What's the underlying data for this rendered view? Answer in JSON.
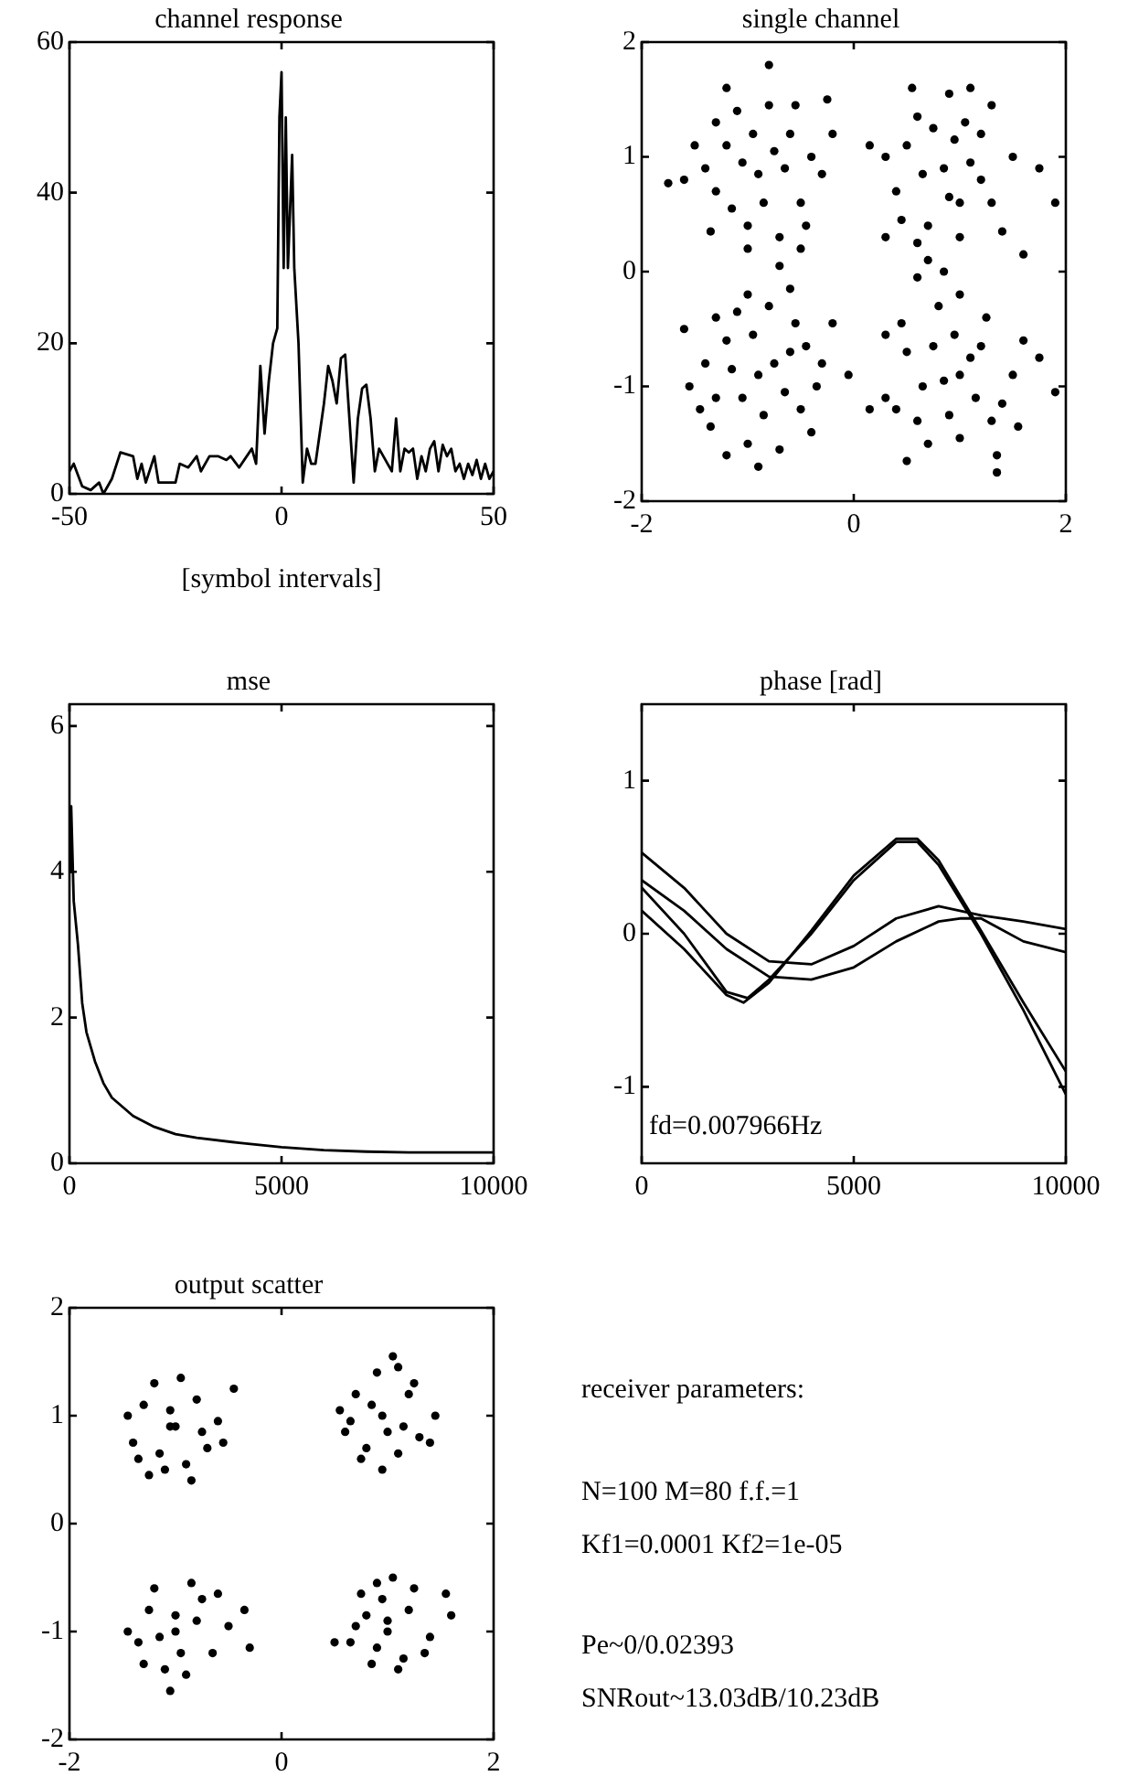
{
  "chart_data": [
    {
      "type": "line",
      "title": "channel response",
      "xlabel": "[symbol intervals]",
      "xlim": [
        -50,
        50
      ],
      "xticks": [
        -50,
        0,
        50
      ],
      "ylim": [
        0,
        60
      ],
      "yticks": [
        0,
        20,
        40,
        60
      ],
      "marker": "none",
      "series": [
        {
          "color": "#000000",
          "x": [
            -50,
            -49,
            -47,
            -45,
            -43,
            -42,
            -40,
            -38,
            -35,
            -34,
            -33,
            -32,
            -30,
            -29,
            -25,
            -24,
            -22,
            -20,
            -19,
            -17,
            -15,
            -13,
            -12,
            -10,
            -7,
            -6,
            -5,
            -4,
            -3,
            -2,
            -1,
            -0.5,
            0,
            0.5,
            1,
            1.5,
            2.5,
            3,
            4,
            5,
            6,
            7,
            8,
            10,
            11,
            12,
            13,
            14,
            15,
            16,
            17,
            18,
            19,
            20,
            21,
            22,
            23,
            25,
            26,
            27,
            28,
            29,
            30,
            31,
            32,
            33,
            34,
            35,
            36,
            37,
            38,
            39,
            40,
            41,
            42,
            43,
            44,
            45,
            46,
            47,
            48,
            49,
            50
          ],
          "values": [
            3,
            4,
            1,
            0.5,
            1.5,
            0,
            2,
            5.5,
            5,
            2,
            4,
            1.5,
            5,
            1.5,
            1.5,
            4,
            3.5,
            5,
            3,
            5,
            5,
            4.5,
            5,
            3.5,
            6,
            4,
            17,
            8,
            15,
            20,
            22,
            50,
            56,
            30,
            50,
            30,
            45,
            30,
            20,
            1.5,
            6,
            4,
            4,
            12,
            17,
            15,
            12,
            18,
            18.5,
            10,
            1.5,
            10,
            14,
            14.5,
            10,
            3,
            6,
            4,
            3,
            10,
            3,
            6,
            5.5,
            6,
            2,
            5,
            3,
            6,
            7,
            3,
            6.5,
            5,
            6,
            3,
            4,
            2,
            4,
            2.5,
            4.5,
            2,
            4,
            2,
            3
          ]
        }
      ]
    },
    {
      "type": "scatter",
      "title": "single channel",
      "xlim": [
        -2,
        2
      ],
      "xticks": [
        -2,
        0,
        2
      ],
      "ylim": [
        -2,
        2
      ],
      "yticks": [
        -2,
        -1,
        0,
        1,
        2
      ],
      "marker": "circle",
      "series": [
        {
          "color": "#000000",
          "x": [
            -0.9,
            -1.2,
            -0.6,
            -1.3,
            -0.5,
            -1.0,
            -0.7,
            -1.1,
            -0.8,
            -1.75,
            -1.6,
            -1.4,
            -0.4,
            -0.25,
            -0.2,
            -0.3,
            -0.8,
            -1.2,
            -1.0,
            -0.5,
            -1.35,
            -0.65,
            -1.05,
            -0.85,
            -1.15,
            -0.95,
            -0.55,
            -1.3,
            -0.7,
            -0.45,
            -1.5,
            -0.75,
            0.85,
            0.5,
            1.2,
            0.4,
            1.3,
            0.7,
            1.0,
            0.9,
            1.1,
            0.3,
            0.15,
            1.5,
            1.75,
            1.9,
            1.6,
            0.6,
            0.55,
            1.3,
            0.7,
            0.85,
            1.0,
            0.65,
            1.1,
            0.9,
            0.45,
            1.2,
            0.75,
            1.4,
            0.3,
            1.05,
            0.6,
            0.95,
            -0.9,
            -1.2,
            -0.6,
            -1.3,
            -0.5,
            -1.0,
            -0.7,
            -0.8,
            -1.1,
            -1.6,
            -1.55,
            -1.4,
            -0.3,
            -0.2,
            -0.05,
            -0.35,
            -0.6,
            -1.2,
            -0.9,
            -0.4,
            -1.35,
            -0.65,
            -1.05,
            -0.85,
            -1.15,
            -0.95,
            -0.55,
            -1.3,
            -0.75,
            -0.45,
            -1.45,
            -1.0,
            0.85,
            0.5,
            1.2,
            0.4,
            1.3,
            0.7,
            1.0,
            0.8,
            1.0,
            0.6,
            0.3,
            0.15,
            1.5,
            1.75,
            1.9,
            1.6,
            0.5,
            1.35,
            1.35,
            0.3,
            1.0,
            0.65,
            1.15,
            0.9,
            0.45,
            1.25,
            0.75,
            1.4,
            0.6,
            1.1,
            1.55,
            0.95
          ],
          "values": [
            0.85,
            1.1,
            1.2,
            0.7,
            0.6,
            0.4,
            0.3,
            1.4,
            1.45,
            0.77,
            0.8,
            0.9,
            1.0,
            1.5,
            1.2,
            0.85,
            1.8,
            1.6,
            0.2,
            0.2,
            0.35,
            0.9,
            0.95,
            0.6,
            0.55,
            1.2,
            1.45,
            1.3,
            0.05,
            0.4,
            1.1,
            1.05,
            0.9,
            1.1,
            1.2,
            0.7,
            0.6,
            0.4,
            0.3,
            1.55,
            1.6,
            1.0,
            1.1,
            1.0,
            0.9,
            0.6,
            0.15,
            0.25,
            1.6,
            1.45,
            0.1,
            0.0,
            0.6,
            0.85,
            0.95,
            0.65,
            0.45,
            0.8,
            1.25,
            0.35,
            0.3,
            1.3,
            1.35,
            1.15,
            -0.9,
            -0.6,
            -0.7,
            -1.1,
            -1.2,
            -1.5,
            -1.55,
            -0.3,
            -0.35,
            -0.5,
            -1.0,
            -0.8,
            -0.8,
            -0.45,
            -0.9,
            -1.0,
            -0.15,
            -1.6,
            -1.7,
            -1.4,
            -1.35,
            -1.05,
            -1.1,
            -1.25,
            -0.85,
            -0.55,
            -0.45,
            -0.4,
            -0.8,
            -0.65,
            -1.2,
            -0.2,
            -0.95,
            -0.7,
            -0.65,
            -1.2,
            -1.3,
            -1.5,
            -1.45,
            -0.3,
            -0.2,
            -0.05,
            -1.1,
            -1.2,
            -0.9,
            -0.75,
            -1.05,
            -0.6,
            -1.65,
            -1.75,
            -1.6,
            -0.55,
            -0.9,
            -1.0,
            -1.1,
            -1.25,
            -0.45,
            -0.4,
            -0.65,
            -1.15,
            -1.3,
            -0.75,
            -1.35,
            -0.55
          ]
        }
      ]
    },
    {
      "type": "line",
      "title": "mse",
      "xlim": [
        0,
        10000
      ],
      "xticks": [
        0,
        5000,
        10000
      ],
      "ylim": [
        0,
        6.3
      ],
      "yticks": [
        0,
        2,
        4,
        6
      ],
      "marker": "none",
      "series": [
        {
          "color": "#000000",
          "x": [
            0,
            40,
            100,
            200,
            300,
            400,
            600,
            800,
            1000,
            1500,
            2000,
            2500,
            3000,
            4000,
            5000,
            6000,
            7000,
            8000,
            9000,
            10000
          ],
          "values": [
            4.0,
            4.9,
            3.6,
            3.0,
            2.2,
            1.8,
            1.4,
            1.1,
            0.9,
            0.65,
            0.5,
            0.4,
            0.35,
            0.28,
            0.22,
            0.18,
            0.16,
            0.15,
            0.15,
            0.15
          ]
        }
      ]
    },
    {
      "type": "line",
      "title": "phase [rad]",
      "xlim": [
        0,
        10000
      ],
      "xticks": [
        0,
        5000,
        10000
      ],
      "ylim": [
        -1.5,
        1.5
      ],
      "yticks": [
        -1,
        0,
        1
      ],
      "marker": "none",
      "annotations": [
        "fd=0.007966Hz"
      ],
      "series": [
        {
          "color": "#000000",
          "x": [
            0,
            1000,
            2000,
            2500,
            3000,
            4000,
            5000,
            6000,
            6500,
            7000,
            8000,
            9000,
            10000
          ],
          "values": [
            0.3,
            0.0,
            -0.38,
            -0.42,
            -0.3,
            0.0,
            0.35,
            0.6,
            0.6,
            0.45,
            0.0,
            -0.5,
            -1.05
          ]
        },
        {
          "color": "#000000",
          "x": [
            0,
            1000,
            2000,
            2400,
            3000,
            4000,
            5000,
            6000,
            6500,
            7000,
            8000,
            9000,
            10000
          ],
          "values": [
            0.15,
            -0.1,
            -0.4,
            -0.45,
            -0.32,
            0.02,
            0.38,
            0.62,
            0.62,
            0.48,
            0.02,
            -0.45,
            -0.9
          ]
        },
        {
          "color": "#000000",
          "x": [
            0,
            1000,
            2000,
            3000,
            4000,
            5000,
            6000,
            7000,
            8000,
            9000,
            10000
          ],
          "values": [
            0.53,
            0.3,
            0.0,
            -0.18,
            -0.2,
            -0.08,
            0.1,
            0.18,
            0.12,
            0.08,
            0.03
          ]
        },
        {
          "color": "#000000",
          "x": [
            0,
            1000,
            2000,
            3000,
            4000,
            5000,
            6000,
            7000,
            7500,
            8000,
            9000,
            10000
          ],
          "values": [
            0.35,
            0.15,
            -0.1,
            -0.28,
            -0.3,
            -0.22,
            -0.05,
            0.08,
            0.1,
            0.1,
            -0.05,
            -0.12
          ]
        }
      ]
    },
    {
      "type": "scatter",
      "title": "output scatter",
      "xlim": [
        -2,
        2
      ],
      "xticks": [
        -2,
        0,
        2
      ],
      "ylim": [
        -2,
        2
      ],
      "yticks": [
        -2,
        -1,
        0,
        1,
        2
      ],
      "marker": "circle",
      "series": [
        {
          "color": "#000000",
          "x": [
            -1.05,
            -1.3,
            -0.8,
            -1.4,
            -0.7,
            -1.1,
            -0.9,
            -1.2,
            -0.95,
            -1.45,
            -0.6,
            -0.45,
            -1.0,
            -1.15,
            -0.75,
            -1.25,
            -0.85,
            -1.35,
            -0.55,
            -1.05,
            0.95,
            0.7,
            1.2,
            0.6,
            1.3,
            0.8,
            1.1,
            0.9,
            1.05,
            0.55,
            1.45,
            1.4,
            1.1,
            0.75,
            1.0,
            0.85,
            1.25,
            0.65,
            0.95,
            1.15,
            -1.0,
            -1.25,
            -0.75,
            -1.35,
            -0.65,
            -1.1,
            -0.9,
            -1.2,
            -0.85,
            -1.45,
            -0.5,
            -0.35,
            -0.3,
            -1.3,
            -0.8,
            -1.05,
            -0.95,
            -1.15,
            -0.6,
            -1.0,
            1.0,
            0.75,
            1.25,
            0.65,
            1.35,
            0.85,
            1.1,
            0.9,
            1.05,
            0.5,
            1.55,
            1.6,
            1.4,
            0.8,
            1.0,
            0.9,
            1.2,
            0.7,
            1.15,
            0.95
          ],
          "values": [
            0.9,
            1.1,
            1.15,
            0.75,
            0.7,
            0.5,
            0.55,
            1.3,
            1.35,
            1.0,
            0.95,
            1.25,
            0.9,
            0.65,
            0.85,
            0.45,
            0.4,
            0.6,
            0.75,
            1.05,
            1.0,
            1.2,
            1.2,
            0.85,
            0.8,
            0.7,
            0.65,
            1.4,
            1.55,
            1.05,
            1.0,
            0.75,
            1.45,
            0.6,
            0.85,
            1.1,
            1.3,
            0.95,
            0.5,
            0.9,
            -1.0,
            -0.8,
            -0.7,
            -1.1,
            -1.2,
            -1.35,
            -1.4,
            -0.6,
            -0.55,
            -1.0,
            -0.95,
            -0.8,
            -1.15,
            -1.3,
            -0.9,
            -1.55,
            -1.2,
            -1.05,
            -0.65,
            -0.85,
            -0.9,
            -0.65,
            -0.6,
            -1.1,
            -1.2,
            -1.3,
            -1.35,
            -0.55,
            -0.5,
            -1.1,
            -0.65,
            -0.85,
            -1.05,
            -0.85,
            -1.0,
            -1.15,
            -0.8,
            -0.95,
            -1.25,
            -0.7
          ]
        }
      ]
    },
    {
      "type": "other",
      "annotations": [
        "receiver parameters:",
        "N=100 M=80 f.f.=1",
        "Kf1=0.0001 Kf2=1e-05",
        "Pe~0/0.02393",
        "SNRout~13.03dB/10.23dB"
      ]
    }
  ]
}
